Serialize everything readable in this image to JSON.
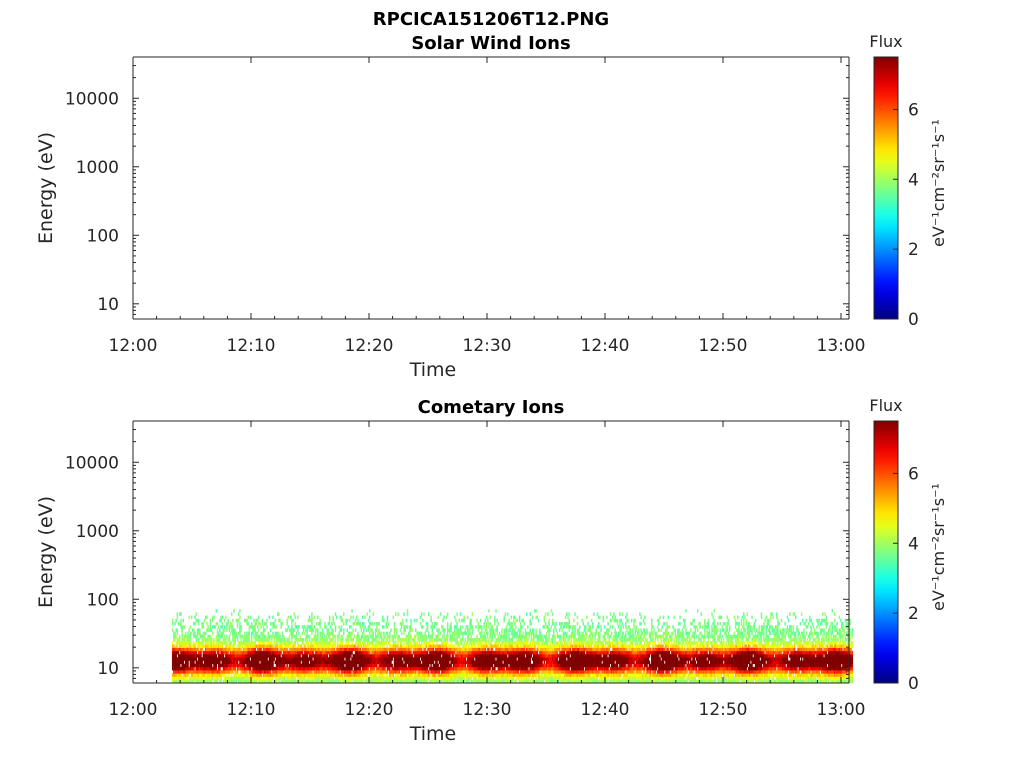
{
  "figure": {
    "title": "RPCICA151206T12.PNG"
  },
  "chart_data": [
    {
      "type": "heatmap",
      "title": "Solar Wind Ions",
      "xlabel": "Time",
      "ylabel": "Energy (eV)",
      "x_ticks": [
        "12:00",
        "12:10",
        "12:20",
        "12:30",
        "12:40",
        "12:50",
        "13:00"
      ],
      "xlim": [
        "12:00",
        "13:00"
      ],
      "y_scale": "log",
      "y_ticks": [
        "10",
        "100",
        "1000",
        "10000"
      ],
      "ylim": [
        6,
        40000
      ],
      "colorbar": {
        "title": "Flux",
        "label": "eV⁻¹cm⁻²sr⁻¹s⁻¹",
        "range": [
          0,
          7.5
        ],
        "ticks": [
          "0",
          "2",
          "4",
          "6"
        ],
        "colormap": "jet"
      },
      "data": "empty"
    },
    {
      "type": "heatmap",
      "title": "Cometary Ions",
      "xlabel": "Time",
      "ylabel": "Energy (eV)",
      "x_ticks": [
        "12:00",
        "12:10",
        "12:20",
        "12:30",
        "12:40",
        "12:50",
        "13:00"
      ],
      "xlim": [
        "12:00",
        "13:00"
      ],
      "y_scale": "log",
      "y_ticks": [
        "10",
        "100",
        "1000",
        "10000"
      ],
      "ylim": [
        6,
        40000
      ],
      "colorbar": {
        "title": "Flux",
        "label": "eV⁻¹cm⁻²sr⁻¹s⁻¹",
        "range": [
          0,
          7.5
        ],
        "ticks": [
          "0",
          "2",
          "4",
          "6"
        ],
        "colormap": "jet"
      },
      "data_time_range": [
        "12:03",
        "13:01"
      ],
      "data_energy_range_eV": [
        6,
        80
      ],
      "peak_flux_energy_eV": 12,
      "peak_flux": 6.5
    }
  ]
}
